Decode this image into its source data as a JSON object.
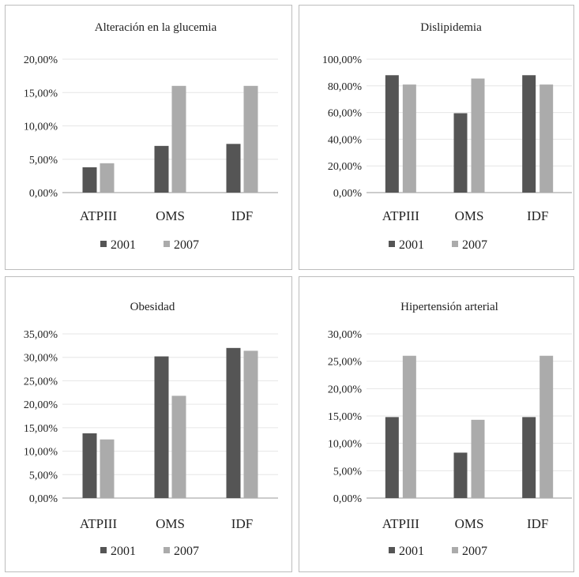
{
  "colors": {
    "series_2001": "#555555",
    "series_2007": "#ababab"
  },
  "chart_data": [
    {
      "type": "bar",
      "title": "Alteración en la glucemia",
      "categories": [
        "ATPIII",
        "OMS",
        "IDF"
      ],
      "series": [
        {
          "name": "2001",
          "values": [
            3.8,
            7.0,
            7.3
          ]
        },
        {
          "name": "2007",
          "values": [
            4.4,
            16.0,
            16.0
          ]
        }
      ],
      "yticks": [
        "0,00%",
        "5,00%",
        "10,00%",
        "15,00%",
        "20,00%"
      ],
      "ylim": [
        0,
        20
      ],
      "grid": true,
      "legend": "bottom"
    },
    {
      "type": "bar",
      "title": "Dislipidemia",
      "categories": [
        "ATPIII",
        "OMS",
        "IDF"
      ],
      "series": [
        {
          "name": "2001",
          "values": [
            88.0,
            59.5,
            88.0
          ]
        },
        {
          "name": "2007",
          "values": [
            81.0,
            85.5,
            81.0
          ]
        }
      ],
      "yticks": [
        "0,00%",
        "20,00%",
        "40,00%",
        "60,00%",
        "80,00%",
        "100,00%"
      ],
      "ylim": [
        0,
        100
      ],
      "grid": true,
      "legend": "bottom"
    },
    {
      "type": "bar",
      "title": "Obesidad",
      "categories": [
        "ATPIII",
        "OMS",
        "IDF"
      ],
      "series": [
        {
          "name": "2001",
          "values": [
            13.8,
            30.2,
            32.0
          ]
        },
        {
          "name": "2007",
          "values": [
            12.5,
            21.8,
            31.4
          ]
        }
      ],
      "yticks": [
        "0,00%",
        "5,00%",
        "10,00%",
        "15,00%",
        "20,00%",
        "25,00%",
        "30,00%",
        "35,00%"
      ],
      "ylim": [
        0,
        35
      ],
      "grid": true,
      "legend": "bottom"
    },
    {
      "type": "bar",
      "title": "Hipertensión arterial",
      "categories": [
        "ATPIII",
        "OMS",
        "IDF"
      ],
      "series": [
        {
          "name": "2001",
          "values": [
            14.8,
            8.3,
            14.8
          ]
        },
        {
          "name": "2007",
          "values": [
            26.0,
            14.3,
            26.0
          ]
        }
      ],
      "yticks": [
        "0,00%",
        "5,00%",
        "10,00%",
        "15,00%",
        "20,00%",
        "25,00%",
        "30,00%"
      ],
      "ylim": [
        0,
        30
      ],
      "grid": true,
      "legend": "bottom"
    }
  ]
}
